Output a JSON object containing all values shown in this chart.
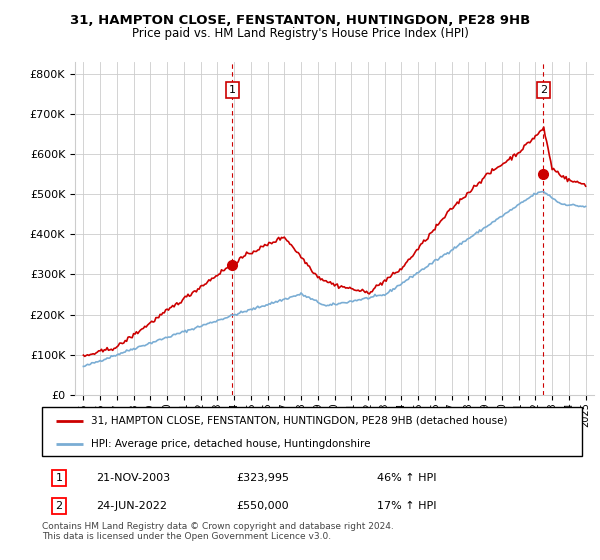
{
  "title_line1": "31, HAMPTON CLOSE, FENSTANTON, HUNTINGDON, PE28 9HB",
  "title_line2": "Price paid vs. HM Land Registry's House Price Index (HPI)",
  "ylabel_ticks": [
    "£0",
    "£100K",
    "£200K",
    "£300K",
    "£400K",
    "£500K",
    "£600K",
    "£700K",
    "£800K"
  ],
  "ytick_values": [
    0,
    100000,
    200000,
    300000,
    400000,
    500000,
    600000,
    700000,
    800000
  ],
  "ylim": [
    0,
    830000
  ],
  "xlim_years": [
    1994.5,
    2025.5
  ],
  "hpi_color": "#7aadd4",
  "price_color": "#cc0000",
  "marker1_year": 2003.9,
  "marker1_price": 323995,
  "marker2_year": 2022.48,
  "marker2_price": 550000,
  "sale1_date": "21-NOV-2003",
  "sale1_price": "£323,995",
  "sale1_note": "46% ↑ HPI",
  "sale2_date": "24-JUN-2022",
  "sale2_price": "£550,000",
  "sale2_note": "17% ↑ HPI",
  "legend_line1": "31, HAMPTON CLOSE, FENSTANTON, HUNTINGDON, PE28 9HB (detached house)",
  "legend_line2": "HPI: Average price, detached house, Huntingdonshire",
  "footnote": "Contains HM Land Registry data © Crown copyright and database right 2024.\nThis data is licensed under the Open Government Licence v3.0.",
  "bg_color": "#ffffff",
  "grid_color": "#cccccc",
  "xtick_years": [
    1995,
    1996,
    1997,
    1998,
    1999,
    2000,
    2001,
    2002,
    2003,
    2004,
    2005,
    2006,
    2007,
    2008,
    2009,
    2010,
    2011,
    2012,
    2013,
    2014,
    2015,
    2016,
    2017,
    2018,
    2019,
    2020,
    2021,
    2022,
    2023,
    2024,
    2025
  ]
}
